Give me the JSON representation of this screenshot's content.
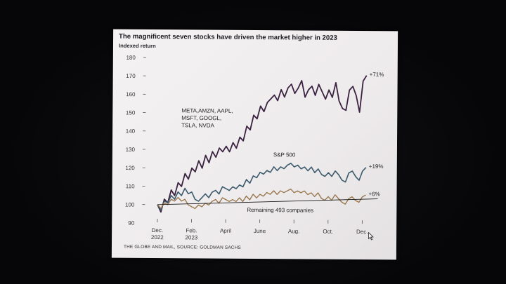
{
  "chart_data": {
    "type": "line",
    "title": "The magnificent seven stocks have driven the market higher in 2023",
    "ylabel": "Indexed return",
    "xlabel": "",
    "ylim": [
      90,
      180
    ],
    "yticks": [
      90,
      100,
      110,
      120,
      130,
      140,
      150,
      160,
      170,
      180
    ],
    "xticks": [
      {
        "x": 0,
        "label": "Dec.",
        "label2": "2022"
      },
      {
        "x": 2,
        "label": "Feb.",
        "label2": "2023"
      },
      {
        "x": 4,
        "label": "April",
        "label2": ""
      },
      {
        "x": 6,
        "label": "June",
        "label2": ""
      },
      {
        "x": 8,
        "label": "Aug.",
        "label2": ""
      },
      {
        "x": 10,
        "label": "Oct.",
        "label2": ""
      },
      {
        "x": 12,
        "label": "Dec.",
        "label2": ""
      }
    ],
    "xlim": [
      -0.4,
      13.6
    ],
    "series": [
      {
        "name": "META,AMZN, AAPL, MSFT, GOOGL, TSLA, NVDA",
        "label_lines": [
          "META,AMZN, AAPL,",
          "MSFT, GOOGL,",
          "TSLA, NVDA"
        ],
        "end_label": "+71%",
        "color": "#3a2240",
        "x": [
          0,
          0.2,
          0.4,
          0.6,
          0.8,
          1.0,
          1.2,
          1.4,
          1.6,
          1.8,
          2.0,
          2.2,
          2.4,
          2.6,
          2.8,
          3.0,
          3.2,
          3.4,
          3.6,
          3.8,
          4.0,
          4.2,
          4.4,
          4.6,
          4.8,
          5.0,
          5.2,
          5.4,
          5.6,
          5.8,
          6.0,
          6.2,
          6.4,
          6.6,
          6.8,
          7.0,
          7.2,
          7.4,
          7.6,
          7.8,
          8.0,
          8.2,
          8.4,
          8.6,
          8.8,
          9.0,
          9.2,
          9.4,
          9.6,
          9.8,
          10.0,
          10.2,
          10.4,
          10.6,
          10.8,
          11.0,
          11.2,
          11.4,
          11.6,
          11.8,
          12.0,
          12.2
        ],
        "values": [
          100,
          96,
          103,
          101,
          108,
          105,
          112,
          110,
          117,
          114,
          120,
          118,
          124,
          120,
          127,
          123,
          129,
          126,
          131,
          129,
          132,
          129,
          134,
          131,
          137,
          135,
          143,
          141,
          149,
          147,
          154,
          151,
          156,
          158,
          160,
          157,
          163,
          159,
          164,
          166,
          161,
          164,
          168,
          159,
          163,
          165,
          160,
          166,
          162,
          158,
          163,
          159,
          167,
          157,
          153,
          152,
          163,
          165,
          160,
          151,
          168,
          171
        ]
      },
      {
        "name": "S&P 500",
        "end_label": "+19%",
        "color": "#3b5a6c",
        "x": [
          0,
          0.2,
          0.4,
          0.6,
          0.8,
          1.0,
          1.2,
          1.4,
          1.6,
          1.8,
          2.0,
          2.2,
          2.4,
          2.6,
          2.8,
          3.0,
          3.2,
          3.4,
          3.6,
          3.8,
          4.0,
          4.2,
          4.4,
          4.6,
          4.8,
          5.0,
          5.2,
          5.4,
          5.6,
          5.8,
          6.0,
          6.2,
          6.4,
          6.6,
          6.8,
          7.0,
          7.2,
          7.4,
          7.6,
          7.8,
          8.0,
          8.2,
          8.4,
          8.6,
          8.8,
          9.0,
          9.2,
          9.4,
          9.6,
          9.8,
          10.0,
          10.2,
          10.4,
          10.6,
          10.8,
          11.0,
          11.2,
          11.4,
          11.6,
          11.8,
          12.0,
          12.2
        ],
        "values": [
          100,
          97,
          102,
          101,
          105,
          103,
          107,
          105,
          109,
          106,
          107,
          103,
          102,
          104,
          106,
          104,
          107,
          108,
          106,
          110,
          109,
          108,
          110,
          109,
          111,
          110,
          114,
          112,
          116,
          115,
          118,
          117,
          119,
          118,
          121,
          119,
          121,
          120,
          122,
          123,
          121,
          122,
          120,
          121,
          119,
          121,
          118,
          120,
          117,
          116,
          118,
          116,
          119,
          117,
          114,
          113,
          118,
          119,
          116,
          114,
          119,
          121
        ]
      },
      {
        "name": "Remaining 493 companies",
        "end_label": "+6%",
        "color": "#9a7850",
        "x": [
          0,
          0.2,
          0.4,
          0.6,
          0.8,
          1.0,
          1.2,
          1.4,
          1.6,
          1.8,
          2.0,
          2.2,
          2.4,
          2.6,
          2.8,
          3.0,
          3.2,
          3.4,
          3.6,
          3.8,
          4.0,
          4.2,
          4.4,
          4.6,
          4.8,
          5.0,
          5.2,
          5.4,
          5.6,
          5.8,
          6.0,
          6.2,
          6.4,
          6.6,
          6.8,
          7.0,
          7.2,
          7.4,
          7.6,
          7.8,
          8.0,
          8.2,
          8.4,
          8.6,
          8.8,
          9.0,
          9.2,
          9.4,
          9.6,
          9.8,
          10.0,
          10.2,
          10.4,
          10.6,
          10.8,
          11.0,
          11.2,
          11.4,
          11.6,
          11.8,
          12.0,
          12.2
        ],
        "values": [
          100,
          98,
          101,
          100,
          103,
          102,
          104,
          102,
          103,
          100,
          99,
          98,
          100,
          99,
          101,
          100,
          102,
          103,
          101,
          104,
          103,
          102,
          103,
          102,
          104,
          102,
          105,
          103,
          106,
          104,
          106,
          105,
          107,
          106,
          108,
          106,
          108,
          107,
          108,
          109,
          107,
          108,
          107,
          108,
          106,
          107,
          105,
          107,
          104,
          103,
          105,
          103,
          106,
          104,
          102,
          101,
          104,
          105,
          103,
          102,
          105,
          106
        ]
      },
      {
        "name": "baseline",
        "color": "#1a1a1a",
        "x": [
          0,
          12.9
        ],
        "values": [
          100,
          104
        ]
      }
    ]
  },
  "labels": {
    "sp500": "S&P 500",
    "remaining": "Remaining 493 companies"
  },
  "source": "THE GLOBE AND MAIL, SOURCE: GOLDMAN SACHS"
}
